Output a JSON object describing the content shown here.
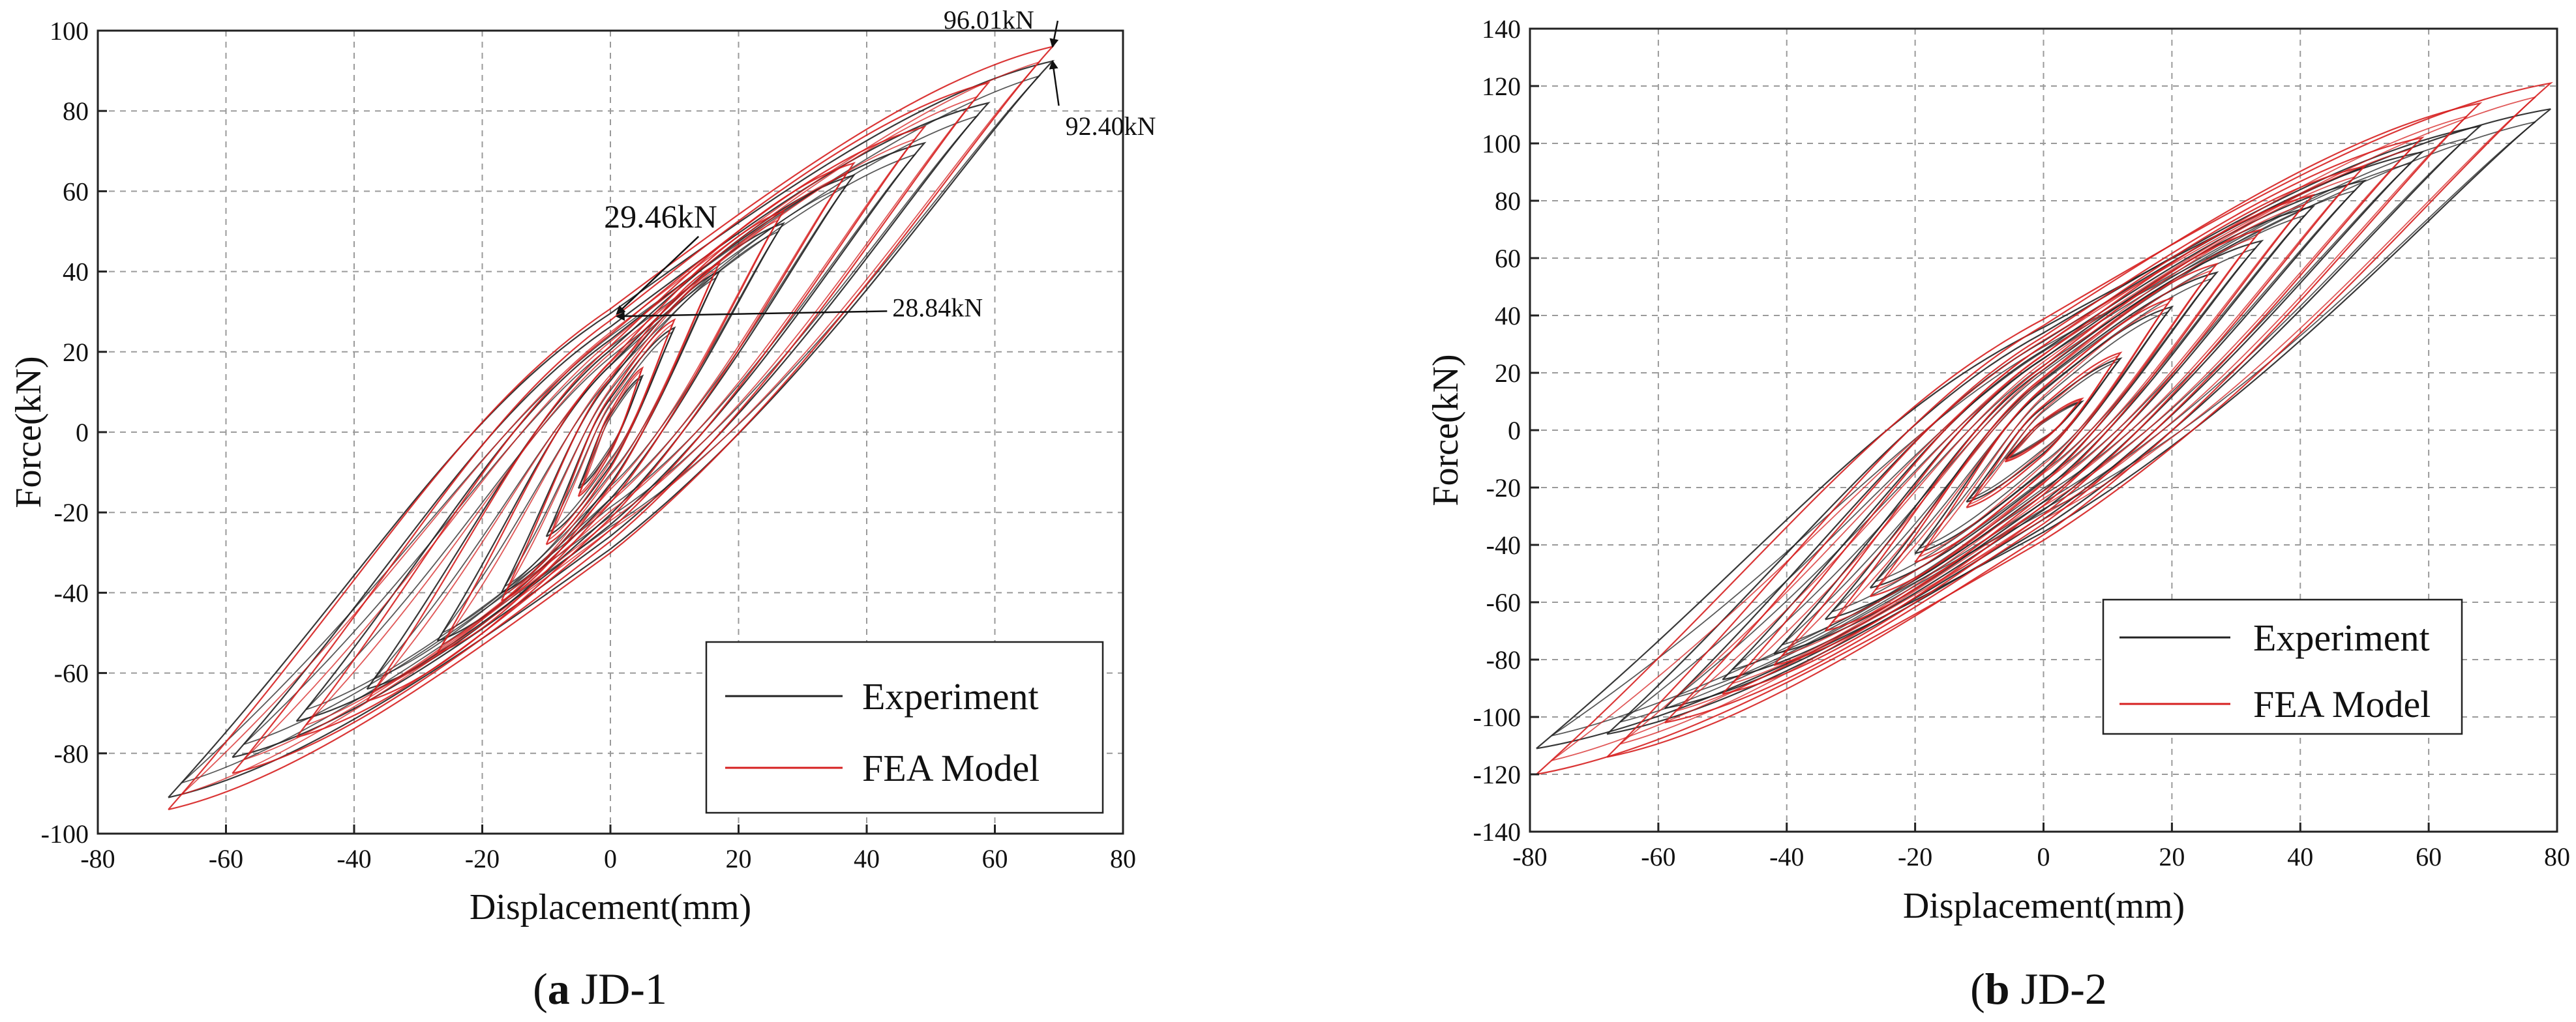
{
  "colors": {
    "experiment": "#222222",
    "fea": "#d62020",
    "grid": "#9a9a9a"
  },
  "chart_data": [
    {
      "type": "line",
      "id": "JD-1",
      "caption_letter": "a",
      "caption_rest": " JD-1",
      "xlabel": "Displacement(mm)",
      "ylabel": "Force(kN)",
      "xlim": [
        -80,
        80
      ],
      "ylim": [
        -100,
        100
      ],
      "xticks": [
        -80,
        -60,
        -40,
        -20,
        0,
        20,
        40,
        60,
        80
      ],
      "yticks": [
        -100,
        -80,
        -60,
        -40,
        -20,
        0,
        20,
        40,
        60,
        80,
        100
      ],
      "grid": true,
      "legend_position": "bottom-right",
      "series": [
        {
          "name": "Experiment",
          "loops": [
            {
              "d": 5,
              "pos": 14,
              "neg": -14
            },
            {
              "d": 10,
              "pos": 26,
              "neg": -26
            },
            {
              "d": 17,
              "pos": 40,
              "neg": -40
            },
            {
              "d": 27,
              "pos": 52,
              "neg": -52
            },
            {
              "d": 38,
              "pos": 64,
              "neg": -64
            },
            {
              "d": 49,
              "pos": 72,
              "neg": -72
            },
            {
              "d": 59,
              "pos": 82,
              "neg": -81
            },
            {
              "d": 69,
              "pos": 92.4,
              "neg": -91
            }
          ]
        },
        {
          "name": "FEA Model",
          "loops": [
            {
              "d": 5,
              "pos": 16,
              "neg": -16
            },
            {
              "d": 10,
              "pos": 28,
              "neg": -28
            },
            {
              "d": 17,
              "pos": 42,
              "neg": -42
            },
            {
              "d": 27,
              "pos": 55,
              "neg": -55
            },
            {
              "d": 38,
              "pos": 67,
              "neg": -67
            },
            {
              "d": 49,
              "pos": 76,
              "neg": -76
            },
            {
              "d": 59,
              "pos": 87,
              "neg": -85
            },
            {
              "d": 69,
              "pos": 96.01,
              "neg": -94
            }
          ]
        }
      ],
      "annotations": [
        {
          "text": "96.01kN",
          "x": 69,
          "y": 96.01,
          "tx": 52,
          "ty": 100.5
        },
        {
          "text": "92.40kN",
          "x": 69,
          "y": 92.4,
          "tx": 71,
          "ty": 74
        },
        {
          "text": "29.46kN",
          "x": 1,
          "y": 29.46,
          "tx": -1,
          "ty": 51
        },
        {
          "text": "28.84kN",
          "x": 1,
          "y": 28.84,
          "tx": 44,
          "ty": 28.84
        }
      ]
    },
    {
      "type": "line",
      "id": "JD-2",
      "caption_letter": "b",
      "caption_rest": " JD-2",
      "xlabel": "Displacement(mm)",
      "ylabel": "Force(kN)",
      "xlim": [
        -80,
        80
      ],
      "ylim": [
        -140,
        140
      ],
      "xticks": [
        -80,
        -60,
        -40,
        -20,
        0,
        20,
        40,
        60,
        80
      ],
      "yticks": [
        -140,
        -120,
        -100,
        -80,
        -60,
        -40,
        -20,
        0,
        20,
        40,
        60,
        80,
        100,
        120,
        140
      ],
      "grid": true,
      "legend_position": "bottom-right",
      "series": [
        {
          "name": "Experiment",
          "loops": [
            {
              "d": 6,
              "pos": 10,
              "neg": -10
            },
            {
              "d": 12,
              "pos": 25,
              "neg": -25
            },
            {
              "d": 20,
              "pos": 43,
              "neg": -43
            },
            {
              "d": 27,
              "pos": 55,
              "neg": -55
            },
            {
              "d": 34,
              "pos": 66,
              "neg": -66
            },
            {
              "d": 42,
              "pos": 78,
              "neg": -78
            },
            {
              "d": 50,
              "pos": 87,
              "neg": -87
            },
            {
              "d": 59,
              "pos": 97,
              "neg": -97
            },
            {
              "d": 68,
              "pos": 106,
              "neg": -106
            },
            {
              "d": 79,
              "pos": 112,
              "neg": -111
            }
          ]
        },
        {
          "name": "FEA Model",
          "loops": [
            {
              "d": 6,
              "pos": 11,
              "neg": -11
            },
            {
              "d": 12,
              "pos": 27,
              "neg": -27
            },
            {
              "d": 20,
              "pos": 46,
              "neg": -46
            },
            {
              "d": 27,
              "pos": 58,
              "neg": -58
            },
            {
              "d": 34,
              "pos": 70,
              "neg": -70
            },
            {
              "d": 42,
              "pos": 82,
              "neg": -82
            },
            {
              "d": 50,
              "pos": 92,
              "neg": -92
            },
            {
              "d": 59,
              "pos": 102,
              "neg": -102
            },
            {
              "d": 68,
              "pos": 114,
              "neg": -114
            },
            {
              "d": 79,
              "pos": 121,
              "neg": -120
            }
          ]
        }
      ],
      "annotations": []
    }
  ]
}
